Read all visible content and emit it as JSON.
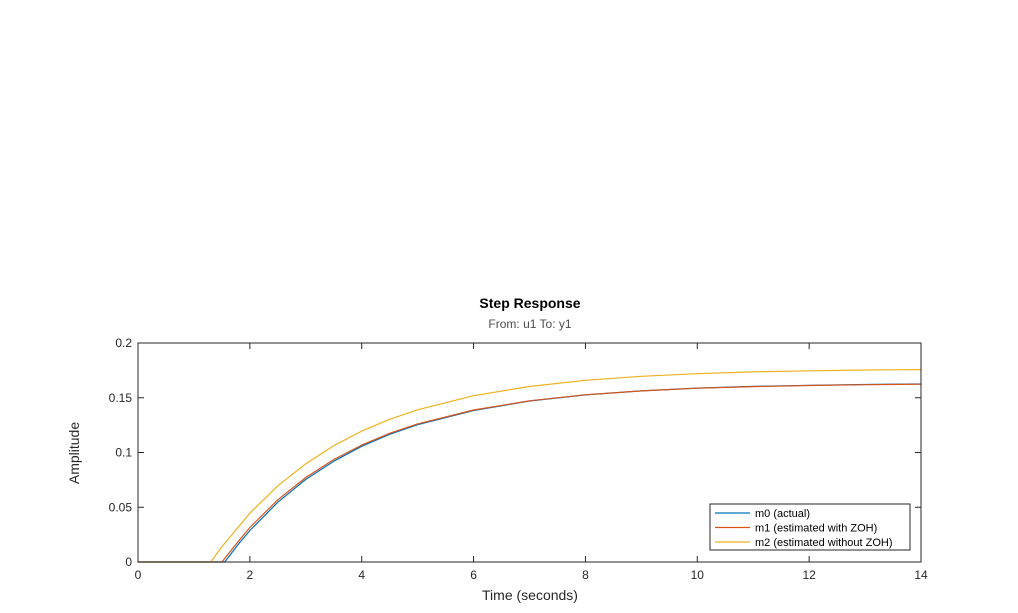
{
  "chart_data": {
    "type": "line",
    "title": "Step Response",
    "subtitle": "From: u1  To: y1",
    "xlabel": "Time (seconds)",
    "ylabel": "Amplitude",
    "xlim": [
      0,
      14
    ],
    "ylim": [
      0,
      0.2
    ],
    "xticks": [
      0,
      2,
      4,
      6,
      8,
      10,
      12,
      14
    ],
    "yticks": [
      0,
      0.05,
      0.1,
      0.15,
      0.2
    ],
    "xtick_labels": [
      "0",
      "2",
      "4",
      "6",
      "8",
      "10",
      "12",
      "14"
    ],
    "ytick_labels": [
      "0",
      "0.05",
      "0.1",
      "0.15",
      "0.2"
    ],
    "grid": false,
    "legend_position": "bottom-right",
    "series": [
      {
        "name": "m0 (actual)",
        "color": "#0072BD",
        "x": [
          0,
          1.55,
          1.8,
          2.0,
          2.5,
          3.0,
          3.5,
          4.0,
          4.5,
          5.0,
          6.0,
          7.0,
          8.0,
          9.0,
          10.0,
          11.0,
          12.0,
          13.0,
          14.0
        ],
        "y": [
          0,
          0,
          0.0166,
          0.0288,
          0.0546,
          0.0754,
          0.0921,
          0.1057,
          0.1166,
          0.1254,
          0.1384,
          0.147,
          0.1526,
          0.1563,
          0.1588,
          0.1604,
          0.1614,
          0.1621,
          0.1626
        ]
      },
      {
        "name": "m1 (estimated with ZOH)",
        "color": "#D95319",
        "x": [
          0,
          1.5,
          1.8,
          2.0,
          2.5,
          3.0,
          3.5,
          4.0,
          4.5,
          5.0,
          6.0,
          7.0,
          8.0,
          9.0,
          10.0,
          11.0,
          12.0,
          13.0,
          14.0
        ],
        "y": [
          0,
          0,
          0.0193,
          0.0315,
          0.0568,
          0.0772,
          0.0936,
          0.1068,
          0.1175,
          0.1261,
          0.1388,
          0.1472,
          0.1527,
          0.1563,
          0.1587,
          0.1602,
          0.1612,
          0.1619,
          0.1624
        ]
      },
      {
        "name": "m2 (estimated without ZOH)",
        "color": "#EDB120",
        "x": [
          0,
          1.3,
          1.5,
          2.0,
          2.5,
          3.0,
          3.5,
          4.0,
          4.5,
          5.0,
          6.0,
          7.0,
          8.0,
          9.0,
          10.0,
          11.0,
          12.0,
          13.0,
          14.0
        ],
        "y": [
          0,
          0,
          0.014,
          0.0447,
          0.0696,
          0.0898,
          0.1062,
          0.1195,
          0.1303,
          0.139,
          0.1519,
          0.1603,
          0.1659,
          0.1696,
          0.172,
          0.1736,
          0.1746,
          0.1753,
          0.1757
        ]
      }
    ]
  }
}
